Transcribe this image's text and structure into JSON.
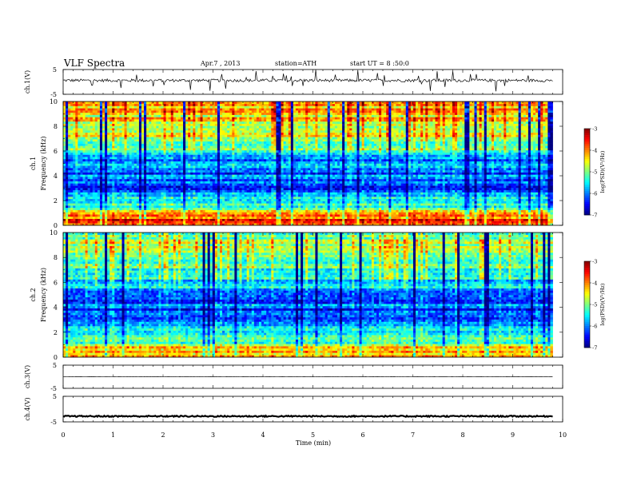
{
  "header": {
    "title": "VLF  Spectra",
    "date": "Apr.7 , 2013",
    "station": "station=ATH",
    "start": "start UT =  8 :50:0"
  },
  "chart_data": [
    {
      "type": "line",
      "panel": "ch1-waveform",
      "ylabel": "ch.1(V)",
      "ylim": [
        -5,
        5
      ],
      "yticks": [
        "5",
        "-5"
      ],
      "level_approx": 0.6,
      "color": "#000000"
    },
    {
      "type": "heatmap",
      "panel": "ch1-spectrogram",
      "ylabel": "Frequency (kHz)",
      "channel_label": "ch.1",
      "ylim": [
        0,
        10
      ],
      "yticks": [
        "0",
        "2",
        "4",
        "6",
        "8",
        "10"
      ],
      "colorbar": {
        "label": "log(PSD)(V²/Hz)",
        "range": [
          -7,
          -3
        ],
        "ticks": [
          "-3",
          "-4",
          "-5",
          "-6",
          "-7"
        ]
      },
      "profile_approx": [
        {
          "f_khz": 0.5,
          "log_psd": -3.8
        },
        {
          "f_khz": 1.5,
          "log_psd": -5.3
        },
        {
          "f_khz": 3.0,
          "log_psd": -6.2
        },
        {
          "f_khz": 5.0,
          "log_psd": -6.0
        },
        {
          "f_khz": 7.0,
          "log_psd": -4.9
        },
        {
          "f_khz": 9.0,
          "log_psd": -4.4
        }
      ]
    },
    {
      "type": "heatmap",
      "panel": "ch2-spectrogram",
      "ylabel": "Frequency (kHz)",
      "channel_label": "ch.2",
      "ylim": [
        0,
        10
      ],
      "yticks": [
        "0",
        "2",
        "4",
        "6",
        "8",
        "10"
      ],
      "colorbar": {
        "label": "log(PSD)(V²/Hz)",
        "range": [
          -7,
          -3
        ],
        "ticks": [
          "-3",
          "-4",
          "-5",
          "-6",
          "-7"
        ]
      },
      "profile_approx": [
        {
          "f_khz": 0.5,
          "log_psd": -4.2
        },
        {
          "f_khz": 1.5,
          "log_psd": -5.4
        },
        {
          "f_khz": 3.0,
          "log_psd": -6.3
        },
        {
          "f_khz": 5.0,
          "log_psd": -6.1
        },
        {
          "f_khz": 7.0,
          "log_psd": -5.3
        },
        {
          "f_khz": 9.0,
          "log_psd": -5.0
        }
      ]
    },
    {
      "type": "line",
      "panel": "ch3-waveform",
      "ylabel": "ch.3(V)",
      "ylim": [
        -5,
        5
      ],
      "yticks": [
        "5",
        "-5"
      ],
      "level_approx": 0.0,
      "color": "#000000"
    },
    {
      "type": "line",
      "panel": "ch4-waveform",
      "ylabel": "ch.4(V)",
      "ylim": [
        -5,
        5
      ],
      "yticks": [
        "5",
        "-5"
      ],
      "level_approx": -2.8,
      "color": "#000000"
    }
  ],
  "xaxis": {
    "label": "Time  (min)",
    "range": [
      0,
      10
    ],
    "data_end": 9.8,
    "ticks": [
      "0",
      "1",
      "2",
      "3",
      "4",
      "5",
      "6",
      "7",
      "8",
      "9",
      "10"
    ]
  }
}
